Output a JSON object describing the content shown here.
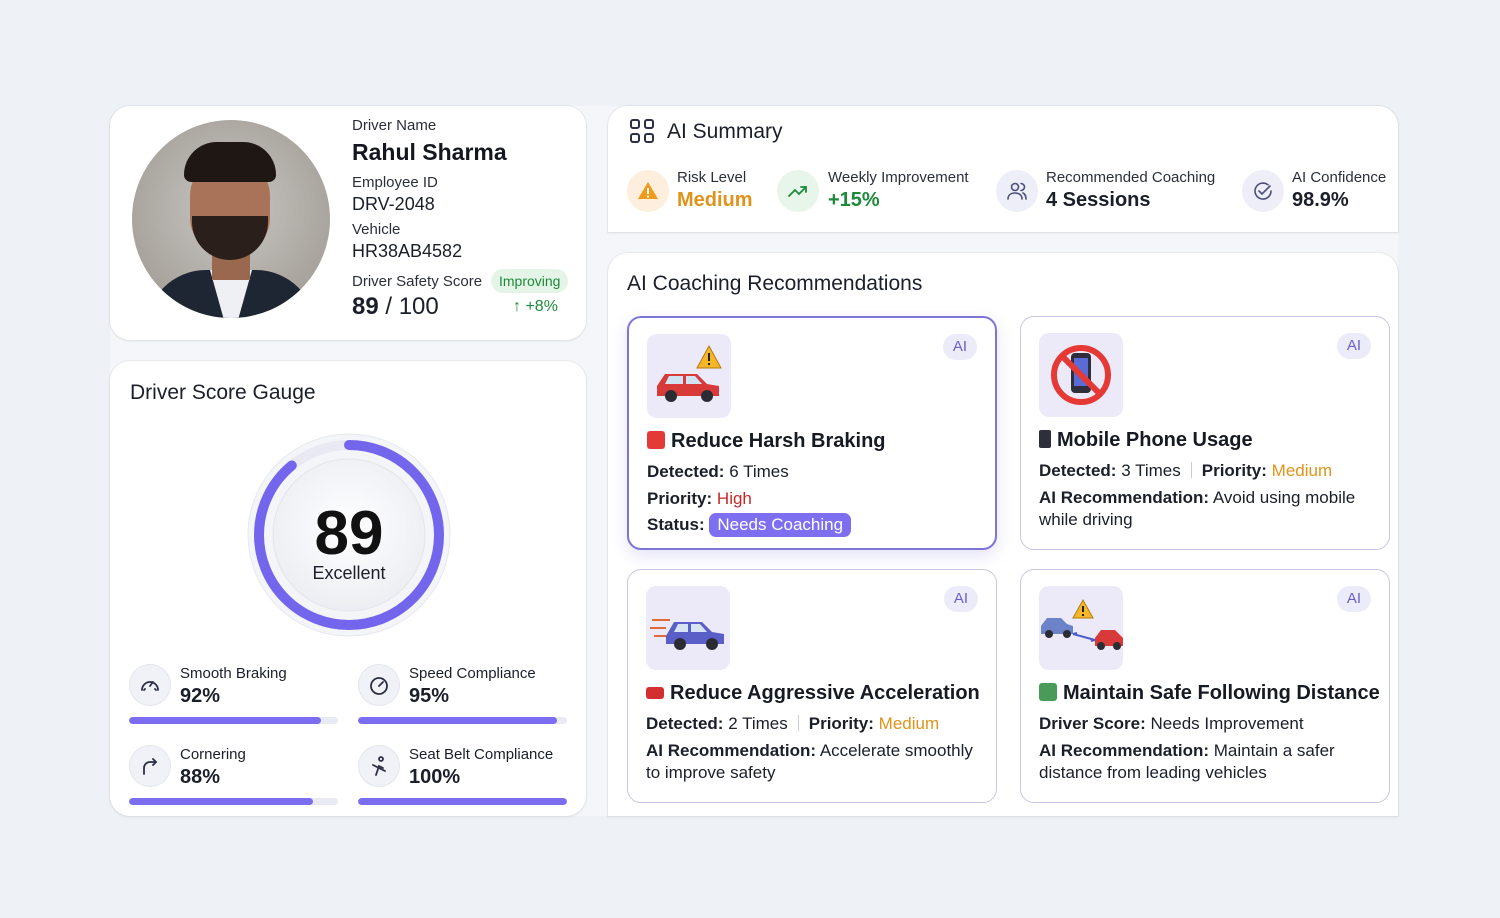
{
  "profile": {
    "name_label": "Driver Name",
    "name": "Rahul Sharma",
    "employee_label": "Employee ID",
    "employee_id": "DRV-2048",
    "vehicle_label": "Vehicle",
    "vehicle": "HR38AB4582",
    "score_label": "Driver Safety Score",
    "trend_badge": "Improving",
    "score": "89",
    "score_max": "/ 100",
    "score_delta": "↑ +8%",
    "score_value": 89
  },
  "gauge": {
    "title": "Driver Score Gauge",
    "value": "89",
    "rating": "Excellent",
    "fraction": 0.89,
    "metrics": [
      {
        "label": "Smooth Braking",
        "value": "92%",
        "fraction": 0.92,
        "icon": "gauge-icon"
      },
      {
        "label": "Speed Compliance",
        "value": "95%",
        "fraction": 0.95,
        "icon": "speedometer-icon"
      },
      {
        "label": "Cornering",
        "value": "88%",
        "fraction": 0.88,
        "icon": "turn-right-icon"
      },
      {
        "label": "Seat Belt Compliance",
        "value": "100%",
        "fraction": 1.0,
        "icon": "seatbelt-icon"
      }
    ]
  },
  "summary": {
    "title": "AI Summary",
    "items": [
      {
        "label": "Risk Level",
        "value": "Medium",
        "color": "#e0931a",
        "icon": "warning-icon"
      },
      {
        "label": "Weekly Improvement",
        "value": "+15%",
        "color": "#1d8a3a",
        "icon": "trending-up-icon"
      },
      {
        "label": "Recommended Coaching",
        "value": "4 Sessions",
        "color": "#1b1f2a",
        "icon": "users-icon"
      },
      {
        "label": "AI Confidence",
        "value": "98.9%",
        "color": "#1b1f2a",
        "icon": "check-circle-icon"
      }
    ]
  },
  "coaching": {
    "title": "AI Coaching Recommendations",
    "ai_badge": "AI",
    "cards": [
      {
        "title": "Reduce Harsh Braking",
        "detected_label": "Detected:",
        "detected": "6 Times",
        "priority_label": "Priority:",
        "priority": "High",
        "status_label": "Status:",
        "status": "Needs Coaching"
      },
      {
        "title": "Mobile Phone Usage",
        "detected_label": "Detected:",
        "detected": "3 Times",
        "priority_label": "Priority:",
        "priority": "Medium",
        "rec_label": "AI Recommendation:",
        "rec_1": "Avoid using mobile",
        "rec_2": "while driving"
      },
      {
        "title": "Reduce Aggressive Acceleration",
        "detected_label": "Detected:",
        "detected": "2 Times",
        "priority_label": "Priority:",
        "priority": "Medium",
        "rec_label": "AI Recommendation:",
        "rec_1": "Accelerate smoothly",
        "rec_2": "to improve safety"
      },
      {
        "title": "Maintain Safe Following Distance",
        "score_label": "Driver Score:",
        "score": "Needs Improvement",
        "rec_label": "AI Recommendation:",
        "rec_1": "Maintain a safer",
        "rec_2": "distance from leading vehicles"
      }
    ]
  },
  "colors": {
    "accent": "#7b6df0",
    "high": "#c62828",
    "medium": "#e0931a",
    "positive": "#1d8a3a"
  }
}
